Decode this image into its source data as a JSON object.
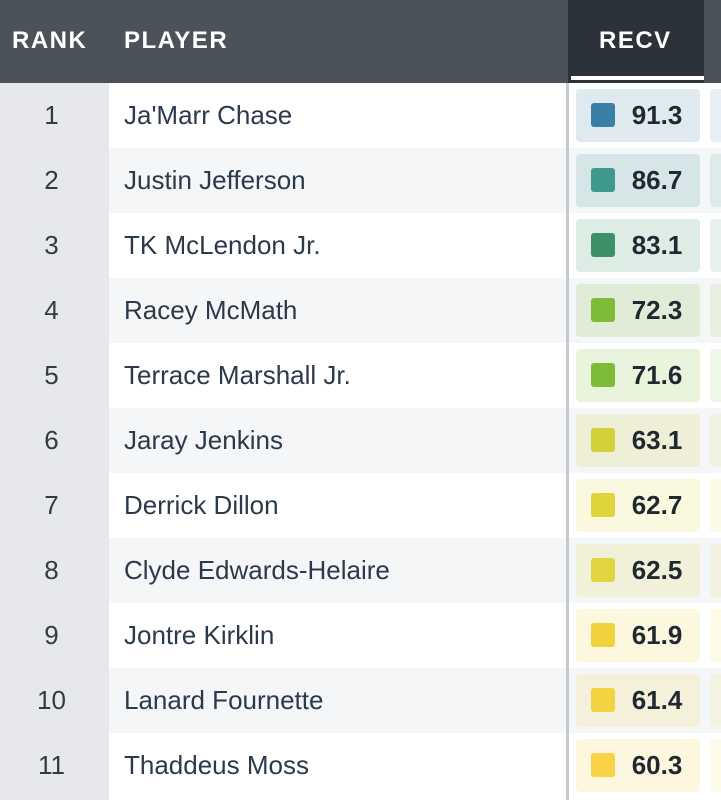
{
  "header": {
    "rank_label": "RANK",
    "player_label": "PLAYER",
    "recv_label": "RECV"
  },
  "players": [
    {
      "rank": "1",
      "name": "Ja'Marr Chase",
      "recv": "91.3",
      "grade_color": "#3a7fa8"
    },
    {
      "rank": "2",
      "name": "Justin Jefferson",
      "recv": "86.7",
      "grade_color": "#3f998c"
    },
    {
      "rank": "3",
      "name": "TK McLendon Jr.",
      "recv": "83.1",
      "grade_color": "#3c9168"
    },
    {
      "rank": "4",
      "name": "Racey McMath",
      "recv": "72.3",
      "grade_color": "#7cbc37"
    },
    {
      "rank": "5",
      "name": "Terrace Marshall Jr.",
      "recv": "71.6",
      "grade_color": "#7cbc37"
    },
    {
      "rank": "6",
      "name": "Jaray Jenkins",
      "recv": "63.1",
      "grade_color": "#d3d13a"
    },
    {
      "rank": "7",
      "name": "Derrick Dillon",
      "recv": "62.7",
      "grade_color": "#dfd43c"
    },
    {
      "rank": "8",
      "name": "Clyde Edwards-Helaire",
      "recv": "62.5",
      "grade_color": "#e3d53f"
    },
    {
      "rank": "9",
      "name": "Jontre Kirklin",
      "recv": "61.9",
      "grade_color": "#f0d23f"
    },
    {
      "rank": "10",
      "name": "Lanard Fournette",
      "recv": "61.4",
      "grade_color": "#f2d341"
    },
    {
      "rank": "11",
      "name": "Thaddeus Moss",
      "recv": "60.3",
      "grade_color": "#f9d246"
    }
  ],
  "colors": {
    "header_bg": "#4b5259",
    "active_header_bg": "#2c3239",
    "rank_column_bg": "#e6e8ec",
    "row_alt_bg": "#f5f6f8"
  }
}
